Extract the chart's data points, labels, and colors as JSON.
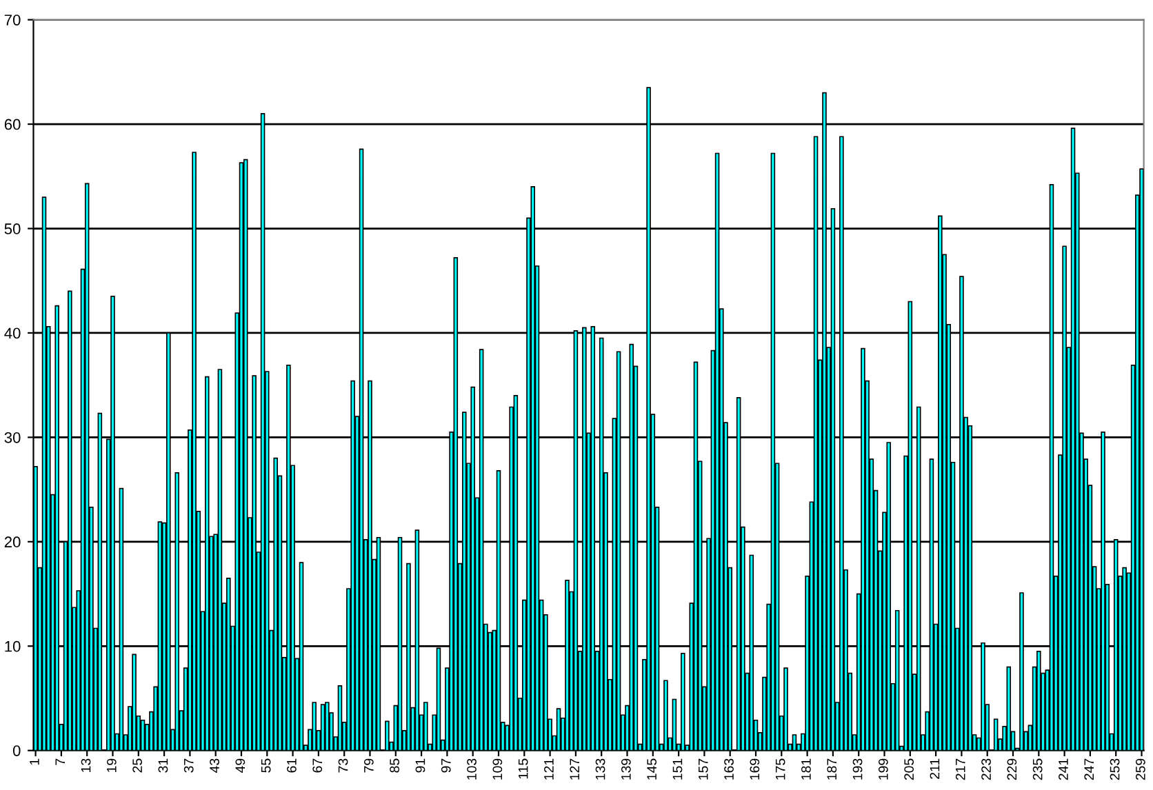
{
  "chart_data": {
    "type": "bar",
    "categories": [
      "1",
      null,
      null,
      null,
      null,
      null,
      "7",
      null,
      null,
      null,
      null,
      null,
      "13",
      null,
      null,
      null,
      null,
      null,
      "19",
      null,
      null,
      null,
      null,
      null,
      "25",
      null,
      null,
      null,
      null,
      null,
      "31",
      null,
      null,
      null,
      null,
      null,
      "37",
      null,
      null,
      null,
      null,
      null,
      "43",
      null,
      null,
      null,
      null,
      null,
      "49",
      null,
      null,
      null,
      null,
      null,
      "55",
      null,
      null,
      null,
      null,
      null,
      "61",
      null,
      null,
      null,
      null,
      null,
      "67",
      null,
      null,
      null,
      null,
      null,
      "73",
      null,
      null,
      null,
      null,
      null,
      "79",
      null,
      null,
      null,
      null,
      null,
      "85",
      null,
      null,
      null,
      null,
      null,
      "91",
      null,
      null,
      null,
      null,
      null,
      "97",
      null,
      null,
      null,
      null,
      null,
      "103",
      null,
      null,
      null,
      null,
      null,
      "109",
      null,
      null,
      null,
      null,
      null,
      "115",
      null,
      null,
      null,
      null,
      null,
      "121",
      null,
      null,
      null,
      null,
      null,
      "127",
      null,
      null,
      null,
      null,
      null,
      "133",
      null,
      null,
      null,
      null,
      null,
      "139",
      null,
      null,
      null,
      null,
      null,
      "145",
      null,
      null,
      null,
      null,
      null,
      "151",
      null,
      null,
      null,
      null,
      null,
      "157",
      null,
      null,
      null,
      null,
      null,
      "163",
      null,
      null,
      null,
      null,
      null,
      "169",
      null,
      null,
      null,
      null,
      null,
      "175",
      null,
      null,
      null,
      null,
      null,
      "181",
      null,
      null,
      null,
      null,
      null,
      "187",
      null,
      null,
      null,
      null,
      null,
      "193",
      null,
      null,
      null,
      null,
      null,
      "199",
      null,
      null,
      null,
      null,
      null,
      "205",
      null,
      null,
      null,
      null,
      null,
      "211",
      null,
      null,
      null,
      null,
      null,
      "217",
      null,
      null,
      null,
      null,
      null,
      "223",
      null,
      null,
      null,
      null,
      null,
      "229",
      null,
      null,
      null,
      null,
      null,
      "235",
      null,
      null,
      null,
      null,
      null,
      "241",
      null,
      null,
      null,
      null,
      null,
      "247",
      null,
      null,
      null,
      null,
      null,
      "253",
      null,
      null,
      null,
      null,
      null,
      "259"
    ],
    "values": [
      27.2,
      17.5,
      53,
      40.6,
      24.5,
      42.6,
      2.5,
      20,
      44,
      13.7,
      15.3,
      46.1,
      54.3,
      23.3,
      11.7,
      32.3,
      0,
      29.8,
      43.5,
      1.6,
      25.1,
      1.5,
      4.2,
      9.2,
      3.3,
      2.9,
      2.5,
      3.7,
      6.1,
      21.9,
      21.8,
      40,
      2,
      26.6,
      3.8,
      7.9,
      30.7,
      57.3,
      22.9,
      13.3,
      35.8,
      20.5,
      20.7,
      36.5,
      14.1,
      16.5,
      11.9,
      41.9,
      56.3,
      56.6,
      22.3,
      35.9,
      19,
      61,
      36.3,
      11.5,
      28,
      26.3,
      8.9,
      36.9,
      27.3,
      8.8,
      18,
      0.5,
      2,
      4.6,
      1.9,
      4.4,
      4.6,
      3.6,
      1.3,
      6.2,
      2.7,
      15.5,
      35.4,
      32,
      57.6,
      20.2,
      35.4,
      18.3,
      20.4,
      null,
      2.8,
      0.8,
      4.3,
      20.4,
      1.9,
      17.9,
      4.1,
      21.1,
      3.4,
      4.6,
      0.6,
      3.4,
      9.8,
      1,
      7.9,
      30.5,
      47.2,
      17.9,
      32.4,
      27.5,
      34.8,
      24.2,
      38.4,
      12.1,
      11.3,
      11.5,
      26.8,
      2.7,
      2.4,
      32.9,
      34,
      5,
      14.4,
      51,
      54,
      46.4,
      14.4,
      13,
      3,
      1.4,
      4,
      3.1,
      16.3,
      15.2,
      40.2,
      9.5,
      40.5,
      30.4,
      40.6,
      9.5,
      39.5,
      26.6,
      6.8,
      31.8,
      38.2,
      3.4,
      4.3,
      38.9,
      36.8,
      0.6,
      8.7,
      63.5,
      32.2,
      23.3,
      0.6,
      6.7,
      1.2,
      4.9,
      0.6,
      9.3,
      0.5,
      14.1,
      37.2,
      27.7,
      6.1,
      20.3,
      38.3,
      57.2,
      42.3,
      31.4,
      17.5,
      0,
      33.8,
      21.4,
      7.4,
      18.7,
      2.9,
      1.7,
      7,
      14,
      57.2,
      27.5,
      3.3,
      7.9,
      0.6,
      1.5,
      0.6,
      1.6,
      16.7,
      23.8,
      58.8,
      37.4,
      63,
      38.6,
      51.9,
      4.6,
      58.8,
      17.3,
      7.4,
      1.5,
      15,
      38.5,
      35.4,
      27.9,
      24.9,
      19.1,
      22.8,
      29.5,
      6.4,
      13.4,
      0.4,
      28.2,
      43,
      7.3,
      32.9,
      1.5,
      3.7,
      27.9,
      12.1,
      51.2,
      47.5,
      40.8,
      27.6,
      11.7,
      45.4,
      31.9,
      31.1,
      1.5,
      1.2,
      10.3,
      4.4,
      null,
      3,
      1.1,
      2.3,
      8,
      1.8,
      0.2,
      15.1,
      1.8,
      2.4,
      8,
      9.5,
      7.4,
      7.7,
      54.2,
      16.7,
      28.3,
      48.3,
      38.6,
      59.6,
      55.3,
      30.4,
      27.9,
      25.4,
      17.6,
      15.5,
      30.5,
      15.9,
      1.6,
      20.2,
      16.7,
      17.5,
      17,
      36.9,
      53.2,
      55.7
    ],
    "color": "#00ffff",
    "ylim": [
      0,
      70
    ],
    "yticks": [
      0,
      10,
      20,
      30,
      40,
      50,
      60,
      70
    ],
    "grid": "y"
  }
}
